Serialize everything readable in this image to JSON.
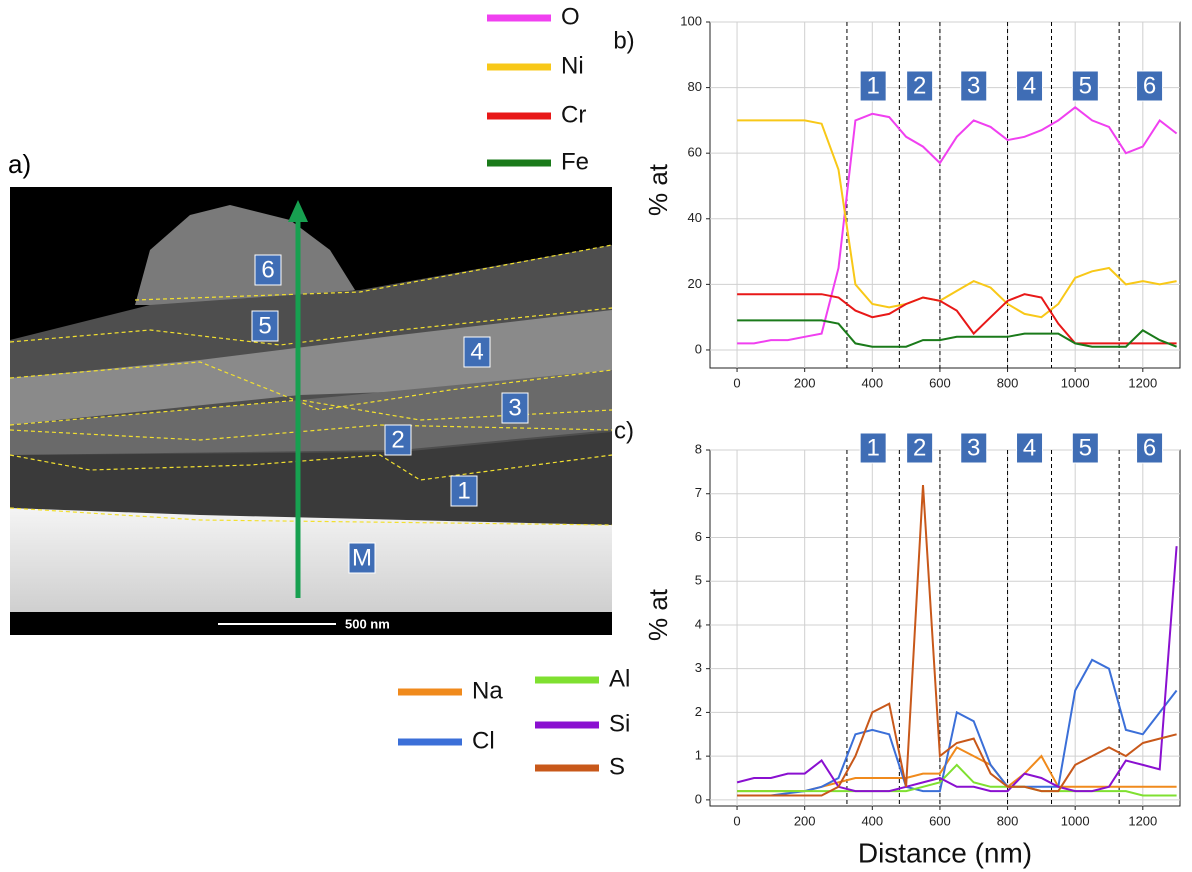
{
  "micrograph": {
    "label": "a)",
    "regions": [
      "6",
      "5",
      "4",
      "3",
      "2",
      "1",
      "M"
    ],
    "scale_bar": "500 nm"
  },
  "chart_data": [
    {
      "type": "line",
      "panel": "b)",
      "ylabel": "% at",
      "legend": "outside-left",
      "x": [
        0,
        50,
        100,
        150,
        200,
        250,
        300,
        350,
        400,
        450,
        500,
        550,
        600,
        650,
        700,
        750,
        800,
        850,
        900,
        950,
        1000,
        1050,
        1100,
        1150,
        1200,
        1250,
        1300
      ],
      "series": [
        {
          "name": "O",
          "color": "#f040f0",
          "values": [
            2,
            2,
            3,
            3,
            4,
            5,
            25,
            70,
            72,
            71,
            65,
            62,
            57,
            65,
            70,
            68,
            64,
            65,
            67,
            70,
            74,
            70,
            68,
            60,
            62,
            70,
            66
          ]
        },
        {
          "name": "Ni",
          "color": "#f8c818",
          "values": [
            70,
            70,
            70,
            70,
            70,
            69,
            55,
            20,
            14,
            13,
            14,
            16,
            15,
            18,
            21,
            19,
            14,
            11,
            10,
            14,
            22,
            24,
            25,
            20,
            21,
            20,
            21
          ]
        },
        {
          "name": "Cr",
          "color": "#e81818",
          "values": [
            17,
            17,
            17,
            17,
            17,
            17,
            16,
            12,
            10,
            11,
            14,
            16,
            15,
            12,
            5,
            10,
            15,
            17,
            16,
            8,
            2,
            2,
            2,
            2,
            2,
            2,
            2
          ]
        },
        {
          "name": "Fe",
          "color": "#1a7a1a",
          "values": [
            9,
            9,
            9,
            9,
            9,
            9,
            8,
            2,
            1,
            1,
            1,
            3,
            3,
            4,
            4,
            4,
            4,
            5,
            5,
            5,
            2,
            1,
            1,
            1,
            6,
            3,
            1
          ]
        }
      ],
      "xlim": [
        -80,
        1310
      ],
      "xticks": [
        0,
        200,
        400,
        600,
        800,
        1000,
        1200
      ],
      "ylim": [
        -5.5,
        100
      ],
      "yticks": [
        0,
        20,
        40,
        60,
        80,
        100
      ],
      "grid": true,
      "zone_boundaries": [
        325,
        480,
        600,
        800,
        930,
        1130
      ],
      "zone_labels": [
        "1",
        "2",
        "3",
        "4",
        "5",
        "6"
      ]
    },
    {
      "type": "line",
      "panel": "c)",
      "ylabel": "% at",
      "xlabel": "Distance (nm)",
      "legend": "outside-left",
      "x": [
        0,
        50,
        100,
        150,
        200,
        250,
        300,
        350,
        400,
        450,
        500,
        550,
        600,
        650,
        700,
        750,
        800,
        850,
        900,
        950,
        1000,
        1050,
        1100,
        1150,
        1200,
        1250,
        1300
      ],
      "series": [
        {
          "name": "Na",
          "color": "#f08a1c",
          "values": [
            0.2,
            0.2,
            0.2,
            0.2,
            0.2,
            0.3,
            0.4,
            0.5,
            0.5,
            0.5,
            0.5,
            0.6,
            0.6,
            1.2,
            1.0,
            0.8,
            0.3,
            0.6,
            1.0,
            0.3,
            0.3,
            0.3,
            0.3,
            0.3,
            0.3,
            0.3,
            0.3
          ]
        },
        {
          "name": "Cl",
          "color": "#3b6fd8",
          "values": [
            0.1,
            0.1,
            0.1,
            0.15,
            0.2,
            0.3,
            0.5,
            1.5,
            1.6,
            1.5,
            0.3,
            0.2,
            0.2,
            2.0,
            1.8,
            0.8,
            0.3,
            0.3,
            0.3,
            0.3,
            2.5,
            3.2,
            3.0,
            1.6,
            1.5,
            2.0,
            2.5
          ]
        },
        {
          "name": "Al",
          "color": "#7fe030",
          "values": [
            0.2,
            0.2,
            0.2,
            0.2,
            0.2,
            0.2,
            0.2,
            0.2,
            0.2,
            0.2,
            0.2,
            0.3,
            0.4,
            0.8,
            0.4,
            0.3,
            0.3,
            0.3,
            0.2,
            0.2,
            0.2,
            0.2,
            0.2,
            0.2,
            0.1,
            0.1,
            0.1
          ]
        },
        {
          "name": "Si",
          "color": "#8a10d0",
          "values": [
            0.4,
            0.5,
            0.5,
            0.6,
            0.6,
            0.9,
            0.3,
            0.2,
            0.2,
            0.2,
            0.3,
            0.4,
            0.5,
            0.3,
            0.3,
            0.2,
            0.2,
            0.6,
            0.5,
            0.3,
            0.2,
            0.2,
            0.3,
            0.9,
            0.8,
            0.7,
            5.8
          ]
        },
        {
          "name": "S",
          "color": "#c8581a",
          "values": [
            0.1,
            0.1,
            0.1,
            0.1,
            0.1,
            0.1,
            0.3,
            1.0,
            2.0,
            2.2,
            0.3,
            7.2,
            1.0,
            1.3,
            1.4,
            0.6,
            0.3,
            0.3,
            0.2,
            0.2,
            0.8,
            1.0,
            1.2,
            1.0,
            1.3,
            1.4,
            1.5
          ]
        }
      ],
      "xlim": [
        -80,
        1310
      ],
      "xticks": [
        0,
        200,
        400,
        600,
        800,
        1000,
        1200
      ],
      "ylim": [
        -0.14,
        8
      ],
      "yticks": [
        0,
        1,
        2,
        3,
        4,
        5,
        6,
        7,
        8
      ],
      "grid": true,
      "zone_boundaries": [
        325,
        480,
        600,
        800,
        930,
        1130
      ],
      "zone_labels": [
        "1",
        "2",
        "3",
        "4",
        "5",
        "6"
      ]
    }
  ]
}
